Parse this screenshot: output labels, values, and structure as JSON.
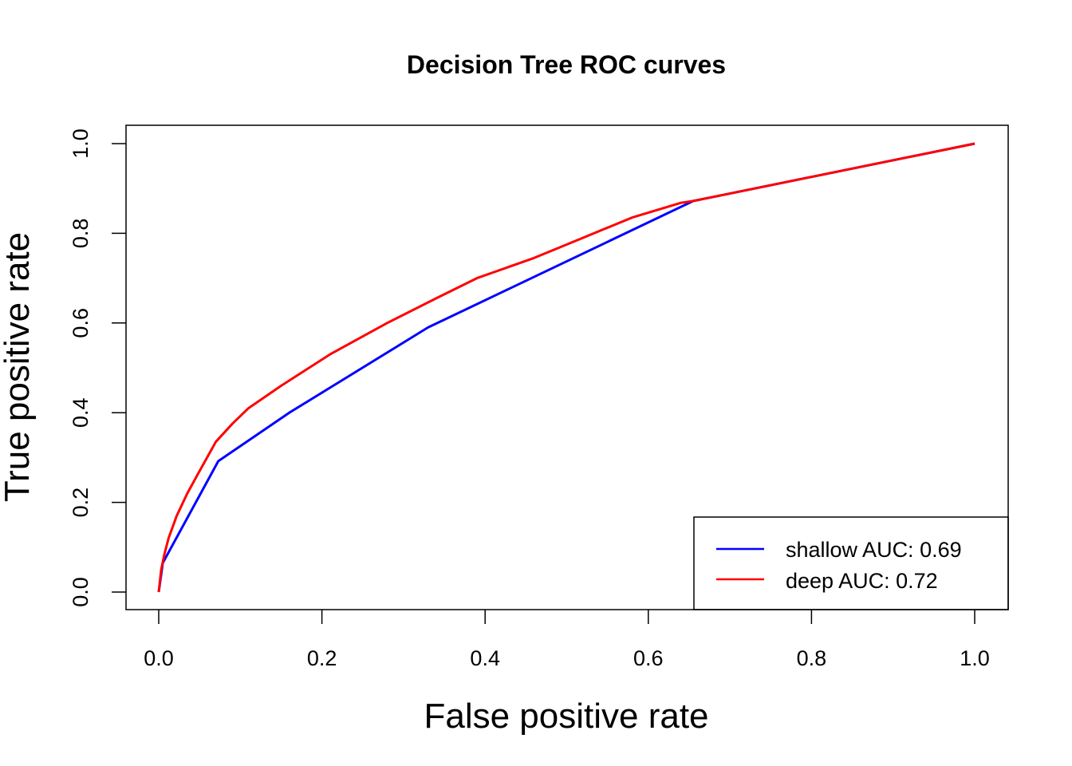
{
  "chart_data": {
    "type": "line",
    "title": "Decision Tree ROC curves",
    "xlabel": "False positive rate",
    "ylabel": "True positive rate",
    "xlim": [
      0,
      1
    ],
    "ylim": [
      0,
      1
    ],
    "xticks": [
      "0.0",
      "0.2",
      "0.4",
      "0.6",
      "0.8",
      "1.0"
    ],
    "yticks": [
      "0.0",
      "0.2",
      "0.4",
      "0.6",
      "0.8",
      "1.0"
    ],
    "grid": false,
    "legend_position": "bottom-right",
    "series": [
      {
        "name": "shallow AUC: 0.69",
        "color": "#0000ff",
        "x": [
          0.0,
          0.005,
          0.073,
          0.16,
          0.33,
          0.655,
          1.0
        ],
        "y": [
          0.0,
          0.065,
          0.292,
          0.4,
          0.59,
          0.872,
          1.0
        ]
      },
      {
        "name": "deep AUC: 0.72",
        "color": "#ff0000",
        "x": [
          0.0,
          0.003,
          0.007,
          0.012,
          0.022,
          0.035,
          0.05,
          0.07,
          0.09,
          0.11,
          0.15,
          0.21,
          0.28,
          0.34,
          0.39,
          0.46,
          0.52,
          0.58,
          0.64,
          0.655,
          1.0
        ],
        "y": [
          0.0,
          0.05,
          0.085,
          0.12,
          0.17,
          0.22,
          0.27,
          0.335,
          0.375,
          0.41,
          0.46,
          0.53,
          0.6,
          0.655,
          0.7,
          0.745,
          0.79,
          0.835,
          0.868,
          0.872,
          1.0
        ]
      }
    ]
  }
}
